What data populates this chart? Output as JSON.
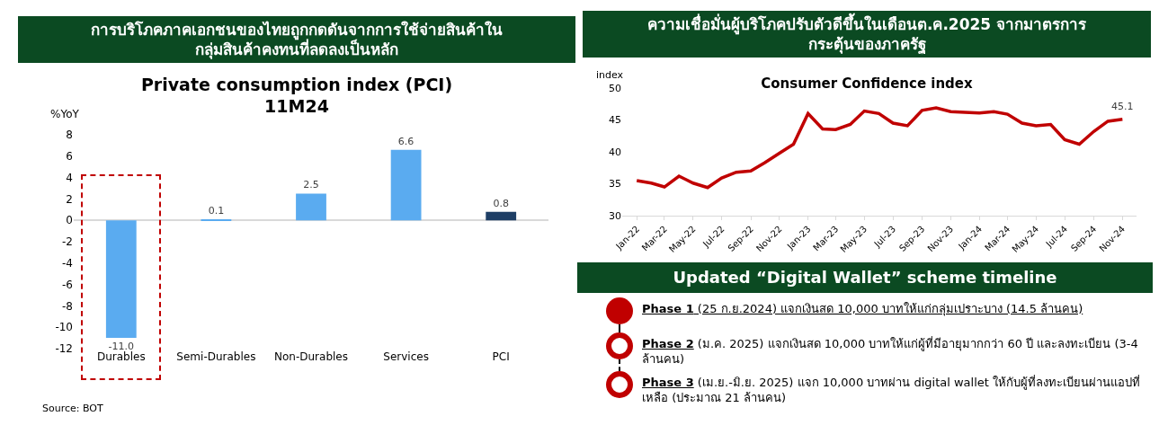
{
  "chart_data": [
    {
      "type": "bar",
      "title": "การบริโภคภาคเอกชนของไทยถูกกดดันจากการใช้จ่ายสินค้าใน\nกลุ่มสินค้าคงทนที่ลดลงเป็นหลัก",
      "subtitle": "Private consumption index (PCI)\n11M24",
      "ylabel": "%YoY",
      "categories": [
        "Durables",
        "Semi-Durables",
        "Non-Durables",
        "Services",
        "PCI"
      ],
      "values": [
        -11.0,
        0.1,
        2.5,
        6.6,
        0.8
      ],
      "colors": [
        "#5aabf0",
        "#5aabf0",
        "#5aabf0",
        "#5aabf0",
        "#1f3f66"
      ],
      "value_labels": [
        "-11.0",
        "0.1",
        "2.5",
        "6.6",
        "0.8"
      ],
      "ylim": [
        -12,
        8
      ],
      "yticks": [
        -12,
        -10,
        -8,
        -6,
        -4,
        -2,
        0,
        2,
        4,
        6,
        8
      ],
      "annotations": [
        "Source: BOT"
      ]
    },
    {
      "type": "line",
      "title": "ความเชื่อมั่นผู้บริโภคปรับตัวดีขึ้นในเดือนต.ค.2025 จากมาตรการ\nกระตุ้นของภาครัฐ",
      "subtitle": "Consumer Confidence index",
      "ylabel": "index",
      "x": [
        "2022-01",
        "2022-02",
        "2022-03",
        "2022-04",
        "2022-05",
        "2022-06",
        "2022-07",
        "2022-08",
        "2022-09",
        "2022-10",
        "2022-11",
        "2022-12",
        "2023-01",
        "2023-02",
        "2023-03",
        "2023-04",
        "2023-05",
        "2023-06",
        "2023-07",
        "2023-08",
        "2023-09",
        "2023-10",
        "2023-11",
        "2023-12",
        "2024-01",
        "2024-02",
        "2024-03",
        "2024-04",
        "2024-05",
        "2024-06",
        "2024-07",
        "2024-08",
        "2024-09",
        "2024-10",
        "2024-11"
      ],
      "series": [
        {
          "color": "#c00000",
          "values": [
            35.5,
            35.1,
            34.5,
            36.2,
            35.1,
            34.4,
            35.9,
            36.8,
            37.0,
            38.3,
            39.8,
            41.2,
            46.0,
            43.6,
            43.5,
            44.3,
            46.4,
            46.0,
            44.5,
            44.1,
            46.5,
            46.9,
            46.3,
            46.2,
            46.1,
            46.3,
            45.9,
            44.5,
            44.1,
            44.3,
            41.9,
            41.2,
            43.2,
            44.8,
            45.1
          ]
        }
      ],
      "xlim": [
        "2021-12",
        "2024-12"
      ],
      "xticks": [
        {
          "value": "2022-01",
          "label": "Jan-22"
        },
        {
          "value": "2022-03",
          "label": "Mar-22"
        },
        {
          "value": "2022-05",
          "label": "May-22"
        },
        {
          "value": "2022-07",
          "label": "Jul-22"
        },
        {
          "value": "2022-09",
          "label": "Sep-22"
        },
        {
          "value": "2022-11",
          "label": "Nov-22"
        },
        {
          "value": "2023-01",
          "label": "Jan-23"
        },
        {
          "value": "2023-03",
          "label": "Mar-23"
        },
        {
          "value": "2023-05",
          "label": "May-23"
        },
        {
          "value": "2023-07",
          "label": "Jul-23"
        },
        {
          "value": "2023-09",
          "label": "Sep-23"
        },
        {
          "value": "2023-11",
          "label": "Nov-23"
        },
        {
          "value": "2024-01",
          "label": "Jan-24"
        },
        {
          "value": "2024-03",
          "label": "Mar-24"
        },
        {
          "value": "2024-05",
          "label": "May-24"
        },
        {
          "value": "2024-07",
          "label": "Jul-24"
        },
        {
          "value": "2024-09",
          "label": "Sep-24"
        },
        {
          "value": "2024-11",
          "label": "Nov-24"
        }
      ],
      "ylim": [
        30,
        50
      ],
      "yticks": [
        30,
        35,
        40,
        45,
        50
      ],
      "annotations": [
        {
          "text": "45.1",
          "x": "2024-11",
          "y": 45.1
        }
      ]
    },
    {
      "type": "other",
      "title": "Updated “Digital Wallet” scheme timeline",
      "annotations": [
        "Phase 1 (25 ก.ย.2024) แจกเงินสด 10,000 บาทให้แก่กลุ่มเปราะบาง (14.5 ล้านคน)",
        "Phase 2 (ม.ค. 2025) แจกเงินสด 10,000 บาทให้แก่ผู้ที่มีอายุมากกว่า 60 ปี และลงทะเบียน (3-4 ล้านคน)",
        "Phase 3 (เม.ย.-มิ.ย. 2025) แจก 10,000 บาทผ่าน digital wallet ให้กับผู้ที่ลงทะเบียนผ่านแอปที่เหลือ (ประมาณ 21 ล้านคน)"
      ]
    }
  ]
}
